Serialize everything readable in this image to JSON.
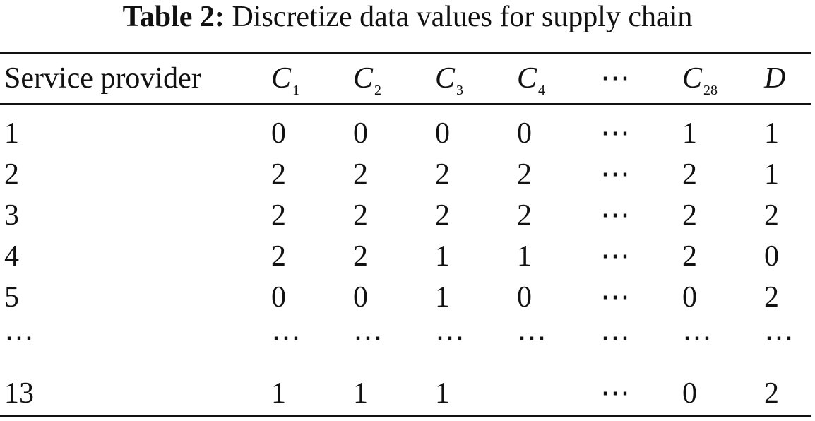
{
  "caption": {
    "label": "Table 2:",
    "text": "Discretize data values for supply chain"
  },
  "table": {
    "header": {
      "first": "Service provider",
      "columns": [
        {
          "var": "C",
          "sub": "1"
        },
        {
          "var": "C",
          "sub": "2"
        },
        {
          "var": "C",
          "sub": "3"
        },
        {
          "var": "C",
          "sub": "4"
        },
        {
          "var": "⋯",
          "sub": ""
        },
        {
          "var": "C",
          "sub": "28"
        },
        {
          "var": "D",
          "sub": ""
        }
      ]
    },
    "rows": [
      [
        "1",
        "0",
        "0",
        "0",
        "0",
        "⋯",
        "1",
        "1"
      ],
      [
        "2",
        "2",
        "2",
        "2",
        "2",
        "⋯",
        "2",
        "1"
      ],
      [
        "3",
        "2",
        "2",
        "2",
        "2",
        "⋯",
        "2",
        "2"
      ],
      [
        "4",
        "2",
        "2",
        "1",
        "1",
        "⋯",
        "2",
        "0"
      ],
      [
        "5",
        "0",
        "0",
        "1",
        "0",
        "⋯",
        "0",
        "2"
      ],
      [
        "⋯",
        "⋯",
        "⋯",
        "⋯",
        "⋯",
        "⋯",
        "⋯",
        "⋯"
      ],
      [
        "13",
        "1",
        "1",
        "1",
        "",
        "⋯",
        "0",
        "2"
      ]
    ]
  }
}
